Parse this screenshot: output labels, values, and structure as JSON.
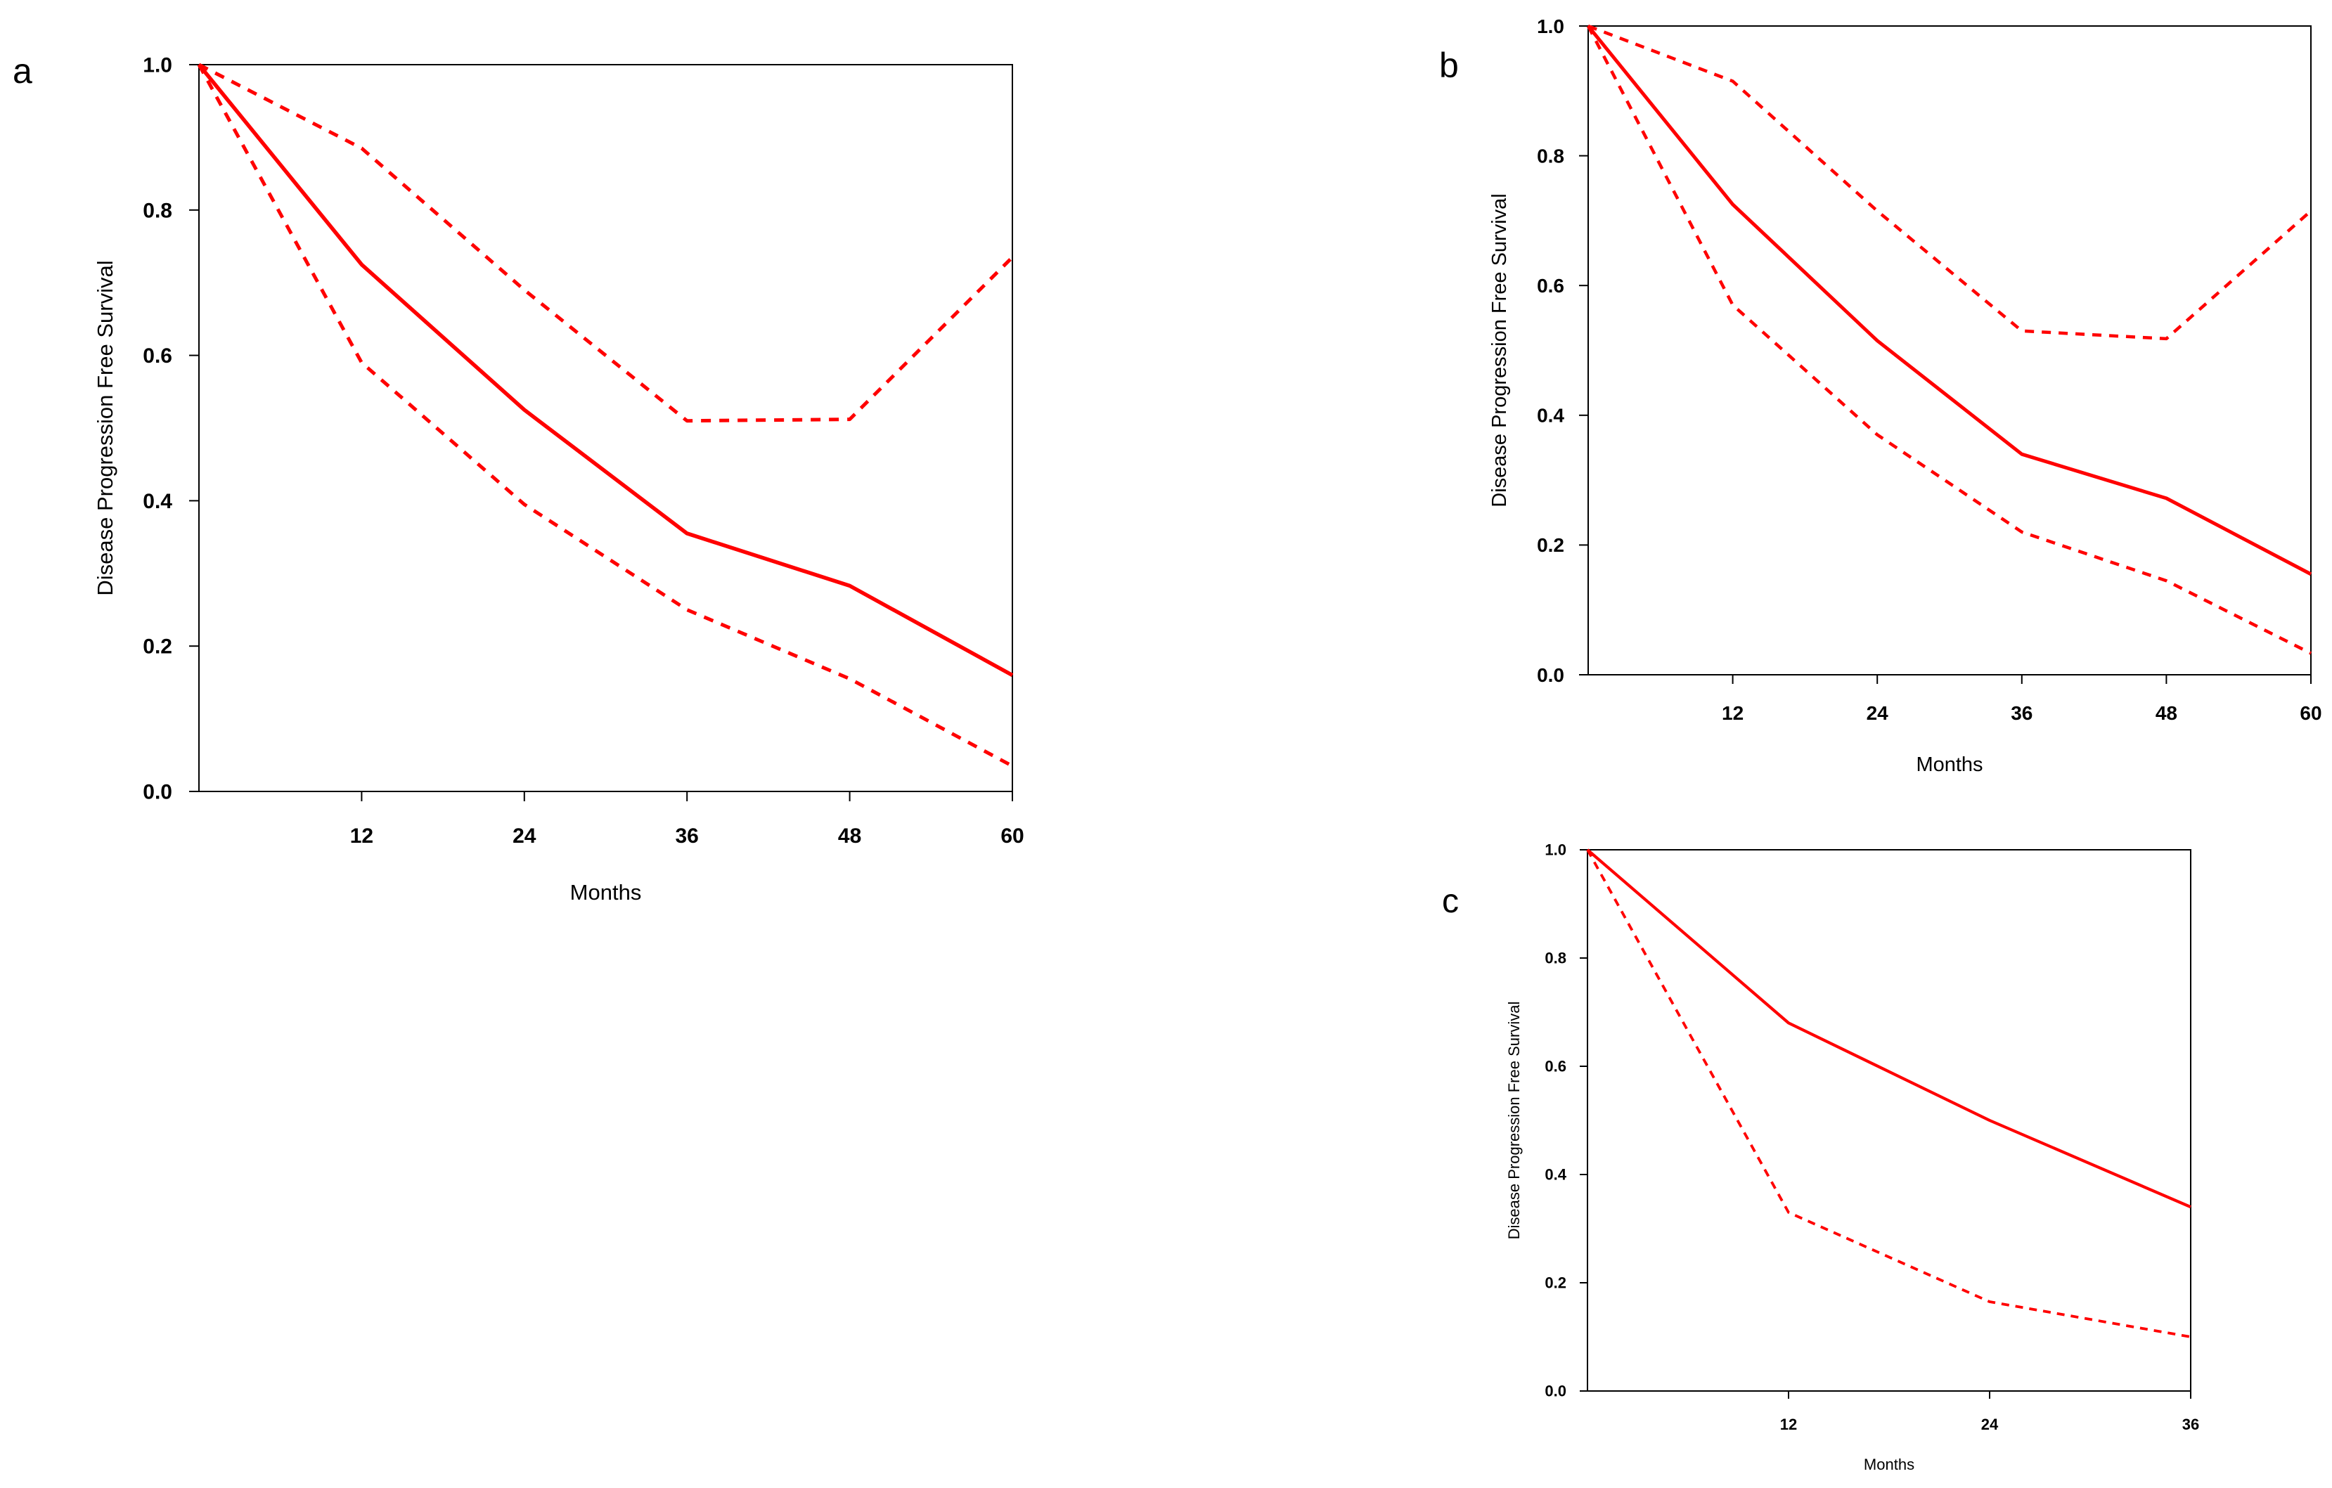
{
  "chart_data": [
    {
      "panel": "a",
      "type": "line",
      "title": "",
      "xlabel": "Months",
      "ylabel": "Disease Progression Free Survival",
      "xlim": [
        0,
        60
      ],
      "ylim": [
        0,
        1
      ],
      "x_ticks": [
        12,
        24,
        36,
        48,
        60
      ],
      "y_ticks": [
        "0.0",
        "0.2",
        "0.4",
        "0.6",
        "0.8",
        "1.0"
      ],
      "grid": false,
      "line_color": "#ff0000",
      "series": [
        {
          "name": "estimate",
          "style": "solid",
          "x": [
            0,
            12,
            24,
            36,
            48,
            60
          ],
          "y": [
            1.0,
            0.725,
            0.525,
            0.355,
            0.283,
            0.16
          ]
        },
        {
          "name": "upper",
          "style": "dashed",
          "x": [
            0,
            12,
            24,
            36,
            48,
            60
          ],
          "y": [
            1.0,
            0.885,
            0.69,
            0.51,
            0.512,
            0.735
          ]
        },
        {
          "name": "lower",
          "style": "dashed",
          "x": [
            0,
            12,
            24,
            36,
            48,
            60
          ],
          "y": [
            1.0,
            0.59,
            0.395,
            0.25,
            0.155,
            0.035
          ]
        }
      ]
    },
    {
      "panel": "b",
      "type": "line",
      "title": "",
      "xlabel": "Months",
      "ylabel": "Disease Progression Free Survival",
      "xlim": [
        0,
        60
      ],
      "ylim": [
        0,
        1
      ],
      "x_ticks": [
        12,
        24,
        36,
        48,
        60
      ],
      "y_ticks": [
        "0.0",
        "0.2",
        "0.4",
        "0.6",
        "0.8",
        "1.0"
      ],
      "grid": false,
      "line_color": "#ff0000",
      "series": [
        {
          "name": "estimate",
          "style": "solid",
          "x": [
            0,
            12,
            24,
            36,
            48,
            60
          ],
          "y": [
            1.0,
            0.725,
            0.515,
            0.34,
            0.272,
            0.155
          ]
        },
        {
          "name": "upper",
          "style": "dashed",
          "x": [
            0,
            12,
            24,
            36,
            48,
            60
          ],
          "y": [
            1.0,
            0.915,
            0.715,
            0.53,
            0.518,
            0.715
          ]
        },
        {
          "name": "lower",
          "style": "dashed",
          "x": [
            0,
            12,
            24,
            36,
            48,
            60
          ],
          "y": [
            1.0,
            0.57,
            0.37,
            0.22,
            0.145,
            0.033
          ]
        }
      ]
    },
    {
      "panel": "c",
      "type": "line",
      "title": "",
      "xlabel": "Months",
      "ylabel": "Disease Progression Free Survival",
      "xlim": [
        0,
        36
      ],
      "ylim": [
        0,
        1
      ],
      "x_ticks": [
        12,
        24,
        36
      ],
      "y_ticks": [
        "0.0",
        "0.2",
        "0.4",
        "0.6",
        "0.8",
        "1.0"
      ],
      "grid": false,
      "line_color": "#ff0000",
      "series": [
        {
          "name": "estimate",
          "style": "solid",
          "x": [
            0,
            12,
            24,
            36
          ],
          "y": [
            1.0,
            0.68,
            0.5,
            0.34
          ]
        },
        {
          "name": "lower",
          "style": "dashed",
          "x": [
            0,
            12,
            24,
            36
          ],
          "y": [
            1.0,
            0.33,
            0.165,
            0.1
          ]
        }
      ]
    }
  ]
}
